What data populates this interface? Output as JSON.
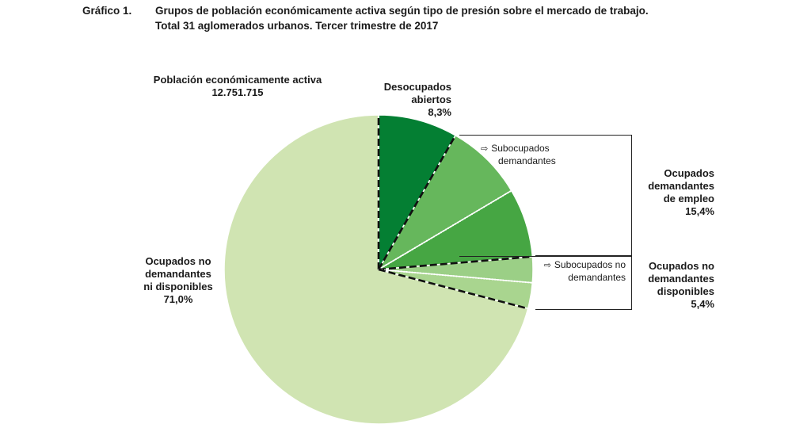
{
  "header": {
    "label": "Gráfico 1.",
    "line1": "Grupos de población económicamente activa según tipo de presión sobre el mercado de trabajo.",
    "line2": "Total 31 aglomerados urbanos. Tercer trimestre de 2017"
  },
  "total": {
    "label": "Población económicamente activa",
    "value": "12.751.715"
  },
  "groups": {
    "desocupados": {
      "line1": "Desocupados",
      "line2": "abiertos",
      "pct": "8,3%"
    },
    "demandantes": {
      "line1": "Ocupados",
      "line2": "demandantes",
      "line3": "de empleo",
      "pct": "15,4%"
    },
    "no_dem_disp": {
      "line1": "Ocupados no",
      "line2": "demandantes",
      "line3": "disponibles",
      "pct": "5,4%"
    },
    "no_dem_no_disp": {
      "line1": "Ocupados no",
      "line2": "demandantes",
      "line3": "ni disponibles",
      "pct": "71,0%"
    }
  },
  "callouts": {
    "sub_dem": {
      "line1": "Subocupados",
      "line2": "demandantes",
      "arrow": "⇨"
    },
    "sub_no_dem": {
      "line1": "Subocupados no",
      "line2": "demandantes",
      "arrow": "⇨"
    }
  },
  "colors": {
    "desocupados": "#047f33",
    "sub_dem": "#66b75c",
    "otros_dem": "#46a643",
    "sub_no_dem": "#9bcf86",
    "otros_no_dem_disp": "#a9d58f",
    "no_dem_no_disp": "#d0e4b2"
  },
  "chart_data": {
    "type": "pie",
    "start_angle": "top",
    "direction": "clockwise",
    "slices": [
      {
        "name": "Desocupados abiertos",
        "value": 8.3
      },
      {
        "name": "Subocupados demandantes",
        "value": 8.2
      },
      {
        "name": "Ocupados demandantes de empleo (resto)",
        "value": 7.2
      },
      {
        "name": "Subocupados no demandantes",
        "value": 2.7
      },
      {
        "name": "Ocupados no demandantes disponibles (resto)",
        "value": 2.7
      },
      {
        "name": "Ocupados no demandantes ni disponibles",
        "value": 71.0
      }
    ],
    "groups": [
      {
        "name": "Ocupados demandantes de empleo",
        "value": 15.4
      },
      {
        "name": "Ocupados no demandantes disponibles",
        "value": 5.4
      }
    ]
  }
}
